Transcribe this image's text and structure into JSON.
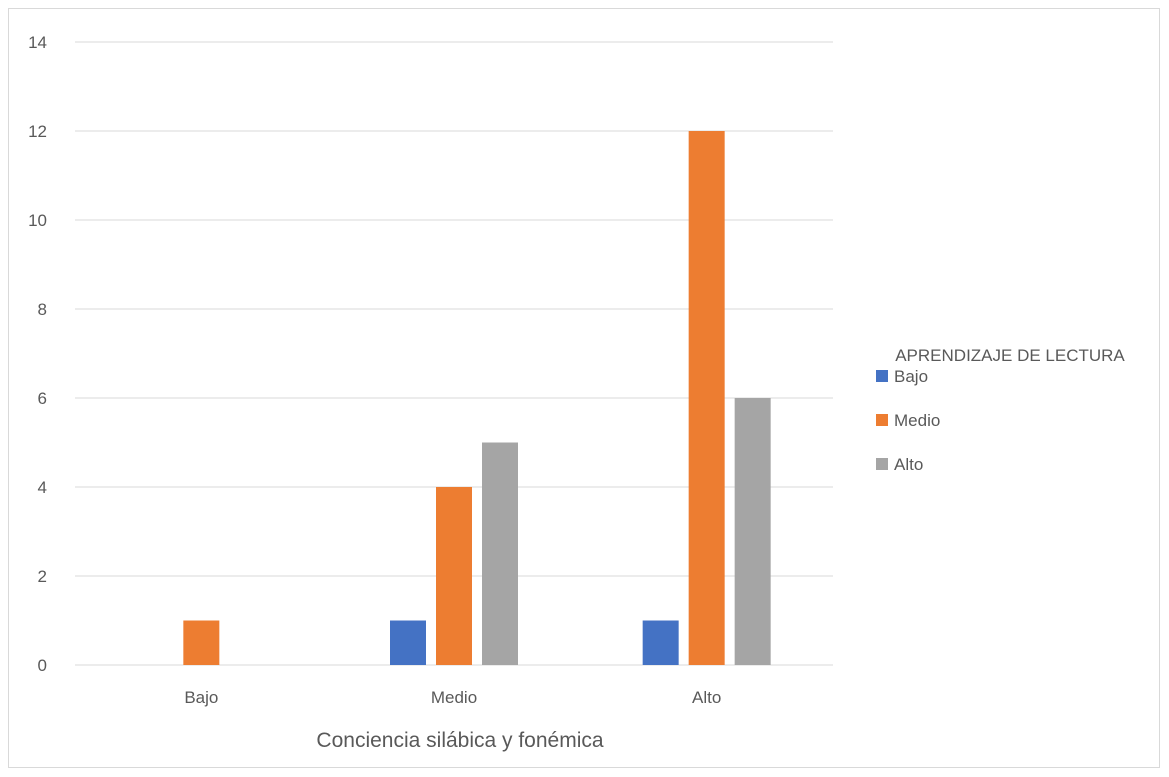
{
  "chart_data": {
    "type": "bar",
    "categories": [
      "Bajo",
      "Medio",
      "Alto"
    ],
    "series": [
      {
        "name": "Bajo",
        "values": [
          0,
          1,
          1
        ],
        "color": "#4472c4"
      },
      {
        "name": "Medio",
        "values": [
          1,
          4,
          12
        ],
        "color": "#ed7d31"
      },
      {
        "name": "Alto",
        "values": [
          0,
          5,
          6
        ],
        "color": "#a5a5a5"
      }
    ],
    "title": "",
    "xlabel": "Conciencia silábica y fonémica",
    "ylabel": "",
    "ylim": [
      0,
      14
    ],
    "yticks": [
      0,
      2,
      4,
      6,
      8,
      10,
      12,
      14
    ],
    "grid": true,
    "legend": {
      "title": "APRENDIZAJE DE LECTURA",
      "placement": "right"
    },
    "gridline_color": "#d9d9d9"
  }
}
